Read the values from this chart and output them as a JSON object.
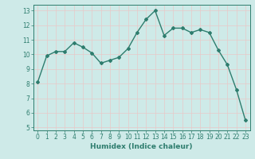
{
  "x": [
    0,
    1,
    2,
    3,
    4,
    5,
    6,
    7,
    8,
    9,
    10,
    11,
    12,
    13,
    14,
    15,
    16,
    17,
    18,
    19,
    20,
    21,
    22,
    23
  ],
  "y": [
    8.1,
    9.9,
    10.2,
    10.2,
    10.8,
    10.5,
    10.1,
    9.4,
    9.6,
    9.8,
    10.4,
    11.5,
    12.4,
    13.0,
    11.3,
    11.8,
    11.8,
    11.5,
    11.7,
    11.5,
    10.3,
    9.3,
    7.6,
    5.5
  ],
  "line_color": "#2e7d6e",
  "marker": "D",
  "marker_size": 2,
  "linewidth": 1.0,
  "xlabel": "Humidex (Indice chaleur)",
  "xlim": [
    -0.5,
    23.5
  ],
  "ylim": [
    4.8,
    13.4
  ],
  "yticks": [
    5,
    6,
    7,
    8,
    9,
    10,
    11,
    12,
    13
  ],
  "xticks": [
    0,
    1,
    2,
    3,
    4,
    5,
    6,
    7,
    8,
    9,
    10,
    11,
    12,
    13,
    14,
    15,
    16,
    17,
    18,
    19,
    20,
    21,
    22,
    23
  ],
  "bg_color": "#ceeae8",
  "grid_color": "#e8c8c8",
  "tick_fontsize": 5.5,
  "xlabel_fontsize": 6.5,
  "axis_color": "#2e7d6e"
}
